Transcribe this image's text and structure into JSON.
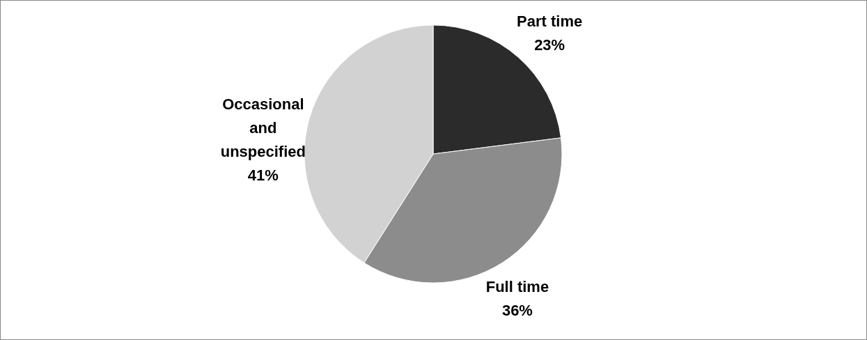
{
  "chart_data": {
    "type": "pie",
    "categories": [
      "Part time",
      "Full time",
      "Occasional and unspecified"
    ],
    "values": [
      23,
      36,
      41
    ],
    "colors": [
      "#2b2b2b",
      "#8c8c8c",
      "#d2d2d2"
    ],
    "value_labels": [
      "23%",
      "36%",
      "41%"
    ]
  }
}
